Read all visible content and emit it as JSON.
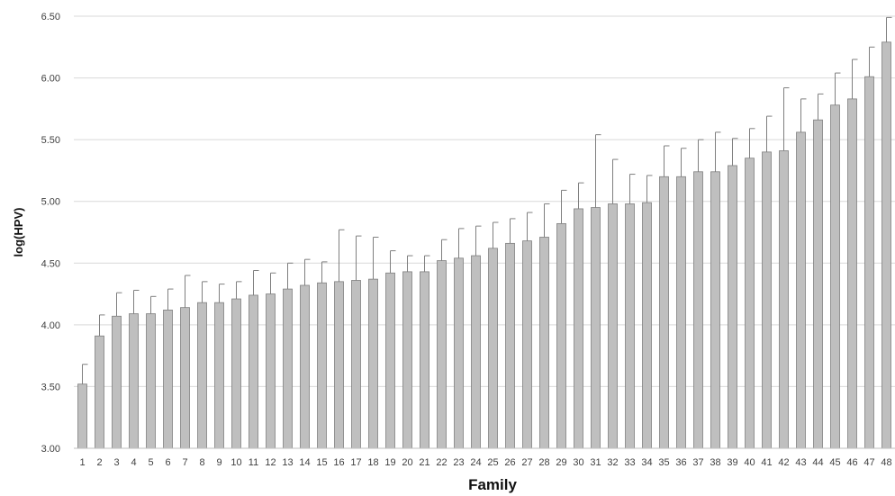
{
  "chart_data": {
    "type": "bar",
    "title": "",
    "xlabel": "Family",
    "ylabel": "log(HPV)",
    "ylim": [
      3.0,
      6.5
    ],
    "y_ticks": [
      "3.00",
      "3.50",
      "4.00",
      "4.50",
      "5.00",
      "5.50",
      "6.00",
      "6.50"
    ],
    "grid": "horizontal",
    "legend": "none",
    "colors": {
      "bar_fill": "#bfbfbf",
      "bar_stroke": "#7f7f7f",
      "error_bar": "#7f7f7f",
      "grid": "#d9d9d9",
      "axis": "#bfbfbf"
    },
    "categories": [
      "1",
      "2",
      "3",
      "4",
      "5",
      "6",
      "7",
      "8",
      "9",
      "10",
      "11",
      "12",
      "13",
      "14",
      "15",
      "16",
      "17",
      "18",
      "19",
      "20",
      "21",
      "22",
      "23",
      "24",
      "25",
      "26",
      "27",
      "28",
      "29",
      "30",
      "31",
      "32",
      "33",
      "34",
      "35",
      "36",
      "37",
      "38",
      "39",
      "40",
      "41",
      "42",
      "43",
      "44",
      "45",
      "46",
      "47",
      "48"
    ],
    "values": [
      3.52,
      3.91,
      4.07,
      4.09,
      4.09,
      4.12,
      4.14,
      4.18,
      4.18,
      4.21,
      4.24,
      4.25,
      4.29,
      4.32,
      4.34,
      4.35,
      4.36,
      4.37,
      4.42,
      4.43,
      4.43,
      4.52,
      4.54,
      4.56,
      4.62,
      4.66,
      4.68,
      4.71,
      4.82,
      4.94,
      4.95,
      4.98,
      4.98,
      4.99,
      5.2,
      5.2,
      5.24,
      5.24,
      5.29,
      5.35,
      5.4,
      5.41,
      5.56,
      5.66,
      5.78,
      5.83,
      6.01,
      6.29
    ],
    "error_upper": [
      3.68,
      4.08,
      4.26,
      4.28,
      4.23,
      4.29,
      4.4,
      4.35,
      4.33,
      4.35,
      4.44,
      4.42,
      4.5,
      4.53,
      4.51,
      4.77,
      4.72,
      4.71,
      4.6,
      4.56,
      4.56,
      4.69,
      4.78,
      4.8,
      4.83,
      4.86,
      4.91,
      4.98,
      5.09,
      5.15,
      5.54,
      5.34,
      5.22,
      5.21,
      5.45,
      5.43,
      5.5,
      5.56,
      5.51,
      5.59,
      5.69,
      5.92,
      5.83,
      5.87,
      6.04,
      6.15,
      6.25,
      6.49
    ]
  }
}
